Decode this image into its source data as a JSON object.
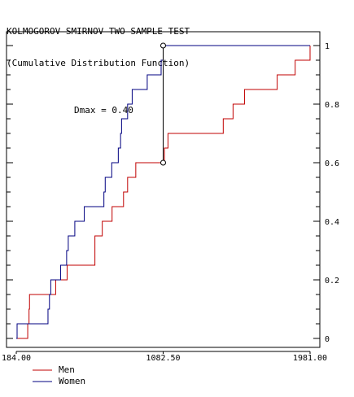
{
  "header": {
    "title": "KOLMOGOROV-SMIRNOV TWO-SAMPLE TEST",
    "subtitle": "(Cumulative Distribution Function)"
  },
  "chart_data": {
    "type": "line",
    "title": "KOLMOGOROV-SMIRNOV TWO-SAMPLE TEST",
    "subtitle": "(Cumulative Distribution Function)",
    "xlim": [
      184,
      1981
    ],
    "ylim": [
      0,
      1
    ],
    "x_tick_labels": [
      "184.00",
      "1082.50",
      "1981.00"
    ],
    "x_tick_values": [
      184,
      1082.5,
      1981
    ],
    "y_tick_labels": [
      "0",
      "0.2",
      "0.4",
      "0.6",
      "0.8",
      "1"
    ],
    "y_tick_values": [
      0,
      0.2,
      0.4,
      0.6,
      0.8,
      1
    ],
    "step": true,
    "grid": false,
    "legend_position": "bottom-left",
    "series": [
      {
        "name": "Men",
        "color": "#c00000",
        "points": [
          [
            184,
            0
          ],
          [
            254,
            0.05
          ],
          [
            262,
            0.1
          ],
          [
            265,
            0.15
          ],
          [
            425,
            0.2
          ],
          [
            495,
            0.25
          ],
          [
            665,
            0.35
          ],
          [
            710,
            0.4
          ],
          [
            770,
            0.45
          ],
          [
            840,
            0.5
          ],
          [
            865,
            0.55
          ],
          [
            915,
            0.6
          ],
          [
            1090,
            0.65
          ],
          [
            1112,
            0.7
          ],
          [
            1450,
            0.75
          ],
          [
            1510,
            0.8
          ],
          [
            1580,
            0.85
          ],
          [
            1780,
            0.9
          ],
          [
            1890,
            0.95
          ],
          [
            1981,
            1.0
          ]
        ]
      },
      {
        "name": "Women",
        "color": "#000080",
        "points": [
          [
            184,
            0
          ],
          [
            189,
            0.05
          ],
          [
            378,
            0.1
          ],
          [
            387,
            0.15
          ],
          [
            395,
            0.2
          ],
          [
            455,
            0.25
          ],
          [
            492,
            0.3
          ],
          [
            502,
            0.35
          ],
          [
            542,
            0.4
          ],
          [
            600,
            0.45
          ],
          [
            720,
            0.5
          ],
          [
            728,
            0.55
          ],
          [
            768,
            0.6
          ],
          [
            808,
            0.65
          ],
          [
            822,
            0.7
          ],
          [
            828,
            0.75
          ],
          [
            865,
            0.8
          ],
          [
            893,
            0.85
          ],
          [
            985,
            0.9
          ],
          [
            1070,
            0.95
          ],
          [
            1082.5,
            1.0
          ]
        ]
      }
    ],
    "annotations": [
      {
        "label": "Dmax = 0.40",
        "x": 1082.5,
        "y_low": 0.6,
        "y_high": 1.0
      }
    ],
    "x_max_extent": 1981
  }
}
